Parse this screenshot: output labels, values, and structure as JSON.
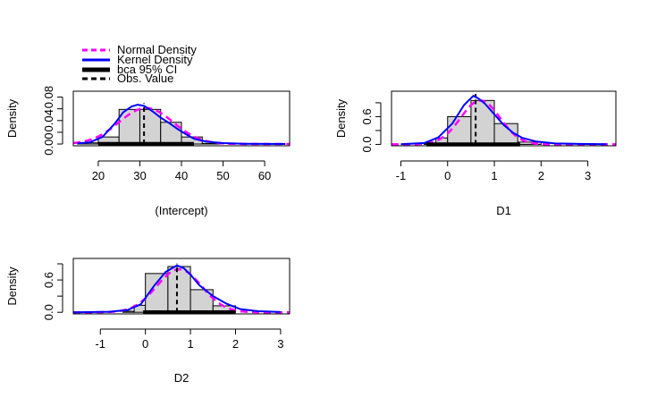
{
  "legend": {
    "placement": "top-left",
    "entries": [
      {
        "label": "Normal Density",
        "color": "#ff00ff",
        "style": "dashed"
      },
      {
        "label": "Kernel Density",
        "color": "#0000ff",
        "style": "solid"
      },
      {
        "label": "bca 95% CI",
        "color": "#000000",
        "style": "thick"
      },
      {
        "label": "Obs. Value",
        "color": "#000000",
        "style": "dashed"
      }
    ]
  },
  "colors": {
    "normal": "#ff00ff",
    "kernel": "#0000ff",
    "bars": "#d3d3d3",
    "ci": "#000000",
    "obs": "#000000"
  },
  "chart_data": [
    {
      "type": "bar",
      "xlabel": "(Intercept)",
      "ylabel": "Density",
      "xlim": [
        14,
        66
      ],
      "ylim": [
        -0.003,
        0.09
      ],
      "xticks": [
        20,
        30,
        40,
        50,
        60
      ],
      "yticks": [
        0.0,
        0.02,
        0.04,
        0.06,
        0.08
      ],
      "ytick_labels": [
        "0.00",
        "",
        "0.04",
        "",
        "0.08"
      ],
      "bins": [
        {
          "x0": 15,
          "x1": 20,
          "density": 0.002
        },
        {
          "x0": 20,
          "x1": 25,
          "density": 0.012
        },
        {
          "x0": 25,
          "x1": 30,
          "density": 0.059
        },
        {
          "x0": 30,
          "x1": 35,
          "density": 0.059
        },
        {
          "x0": 35,
          "x1": 40,
          "density": 0.037
        },
        {
          "x0": 40,
          "x1": 45,
          "density": 0.012
        },
        {
          "x0": 45,
          "x1": 50,
          "density": 0.001
        }
      ],
      "kernel_density": {
        "x": [
          15,
          18,
          21,
          24,
          26,
          28,
          29.5,
          31,
          33,
          35,
          37,
          39,
          41,
          43,
          46,
          50,
          55,
          60,
          65
        ],
        "y": [
          0.001,
          0.003,
          0.012,
          0.035,
          0.054,
          0.064,
          0.067,
          0.065,
          0.056,
          0.045,
          0.036,
          0.026,
          0.017,
          0.009,
          0.004,
          0.0015,
          0.0005,
          0.0002,
          0.0001
        ]
      },
      "normal_density": {
        "mean": 31.5,
        "sd": 6.5
      },
      "ci": [
        20,
        43
      ],
      "obs_value": 31
    },
    {
      "type": "bar",
      "xlabel": "D1",
      "ylabel": "Density",
      "xlim": [
        -1.2,
        3.6
      ],
      "ylim": [
        -0.03,
        1.15
      ],
      "xticks": [
        -1,
        0,
        1,
        2,
        3
      ],
      "yticks": [
        0.0,
        0.3,
        0.6,
        0.9
      ],
      "ytick_labels": [
        "0.0",
        "",
        "0.6",
        ""
      ],
      "bins": [
        {
          "x0": -0.5,
          "x1": -0.25,
          "density": 0.02
        },
        {
          "x0": -0.25,
          "x1": 0.0,
          "density": 0.14
        },
        {
          "x0": 0.0,
          "x1": 0.5,
          "density": 0.6
        },
        {
          "x0": 0.5,
          "x1": 1.0,
          "density": 0.95
        },
        {
          "x0": 1.0,
          "x1": 1.5,
          "density": 0.45
        },
        {
          "x0": 1.5,
          "x1": 2.0,
          "density": 0.05
        }
      ],
      "kernel_density": {
        "x": [
          -1,
          -0.5,
          -0.2,
          0.1,
          0.35,
          0.55,
          0.65,
          0.8,
          1.0,
          1.2,
          1.4,
          1.6,
          1.9,
          2.3,
          2.8,
          3.4
        ],
        "y": [
          0.005,
          0.03,
          0.15,
          0.45,
          0.85,
          1.05,
          1.0,
          0.88,
          0.65,
          0.42,
          0.25,
          0.14,
          0.06,
          0.02,
          0.01,
          0.005
        ]
      },
      "normal_density": {
        "mean": 0.7,
        "sd": 0.42
      },
      "ci": [
        -0.45,
        1.55
      ],
      "obs_value": 0.6
    },
    {
      "type": "bar",
      "xlabel": "D2",
      "ylabel": "Density",
      "xlim": [
        -1.6,
        3.2
      ],
      "ylim": [
        -0.03,
        1.0
      ],
      "xticks": [
        -1,
        0,
        1,
        2,
        3
      ],
      "yticks": [
        0.0,
        0.3,
        0.6,
        0.9
      ],
      "ytick_labels": [
        "0.0",
        "",
        "0.6",
        ""
      ],
      "bins": [
        {
          "x0": -0.5,
          "x1": -0.25,
          "density": 0.02
        },
        {
          "x0": -0.25,
          "x1": 0.0,
          "density": 0.13
        },
        {
          "x0": 0.0,
          "x1": 0.5,
          "density": 0.72
        },
        {
          "x0": 0.5,
          "x1": 1.0,
          "density": 0.85
        },
        {
          "x0": 1.0,
          "x1": 1.5,
          "density": 0.42
        },
        {
          "x0": 1.5,
          "x1": 2.0,
          "density": 0.12
        }
      ],
      "kernel_density": {
        "x": [
          -1.6,
          -0.8,
          -0.4,
          -0.1,
          0.2,
          0.45,
          0.7,
          0.85,
          1.0,
          1.2,
          1.5,
          1.8,
          2.1,
          2.5,
          3.0
        ],
        "y": [
          0.0,
          0.01,
          0.04,
          0.15,
          0.5,
          0.75,
          0.87,
          0.82,
          0.7,
          0.5,
          0.3,
          0.16,
          0.06,
          0.02,
          0.005
        ]
      },
      "normal_density": {
        "mean": 0.75,
        "sd": 0.5
      },
      "ci": [
        -0.05,
        2.0
      ],
      "obs_value": 0.7
    }
  ]
}
